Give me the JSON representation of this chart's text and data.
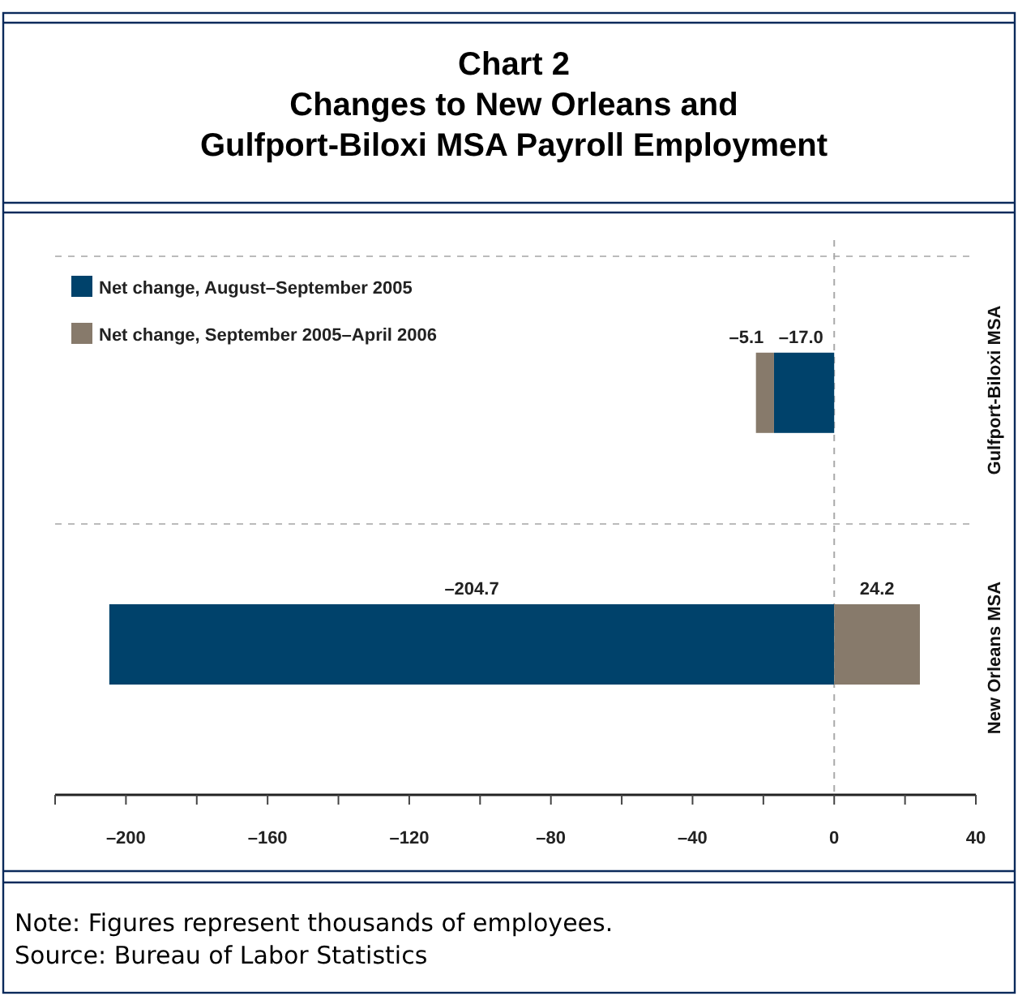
{
  "chart_data": {
    "type": "bar",
    "orientation": "horizontal",
    "stacked": true,
    "title": "Chart 2\nChanges to New Orleans and\nGulfport-Biloxi MSA Payroll Employment",
    "categories": [
      "Gulfport-Biloxi MSA",
      "New Orleans MSA"
    ],
    "series": [
      {
        "name": "Net change, August–September 2005",
        "color": "#00426b",
        "values": [
          -17.0,
          -204.7
        ],
        "value_labels": [
          "–17.0",
          "–204.7"
        ]
      },
      {
        "name": "Net change, September 2005–April 2006",
        "color": "#877a6b",
        "values": [
          -5.1,
          24.2
        ],
        "value_labels": [
          "–5.1",
          "24.2"
        ]
      }
    ],
    "xlim": [
      -220,
      40
    ],
    "xticks": [
      {
        "value": -220,
        "label": null
      },
      {
        "value": -200,
        "label": "–200"
      },
      {
        "value": -180,
        "label": null
      },
      {
        "value": -160,
        "label": "–160"
      },
      {
        "value": -140,
        "label": null
      },
      {
        "value": -120,
        "label": "–120"
      },
      {
        "value": -100,
        "label": null
      },
      {
        "value": -80,
        "label": "–80"
      },
      {
        "value": -60,
        "label": null
      },
      {
        "value": -40,
        "label": "–40"
      },
      {
        "value": -20,
        "label": null
      },
      0,
      {
        "value": 20,
        "label": null
      },
      40
    ],
    "grid": "y",
    "legend": "top left",
    "ref_lines": [
      {
        "axis": "x",
        "value": 0,
        "color": "#aaaaaa",
        "line_style": "dashed"
      }
    ],
    "annotations": [
      "Note: Figures represent thousands of employees.",
      "Source: Bureau of Labor Statistics"
    ]
  }
}
